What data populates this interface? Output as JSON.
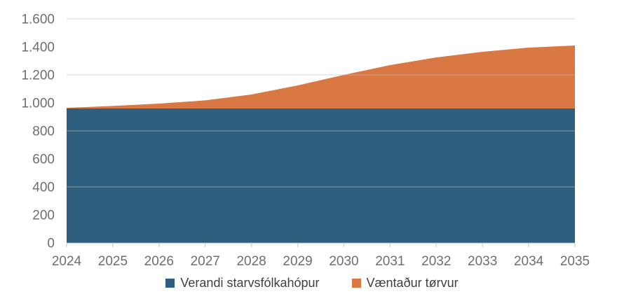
{
  "chart_data": {
    "type": "area",
    "stacked": true,
    "title": "",
    "xlabel": "",
    "ylabel": "",
    "categories": [
      "2024",
      "2025",
      "2026",
      "2027",
      "2028",
      "2029",
      "2030",
      "2031",
      "2032",
      "2033",
      "2034",
      "2035"
    ],
    "series": [
      {
        "name": "Verandi starvsfólkahópur",
        "color": "#2E5F7E",
        "values": [
          960,
          960,
          960,
          960,
          960,
          960,
          960,
          960,
          960,
          960,
          960,
          960
        ]
      },
      {
        "name": "Væntaður tørvur",
        "color": "#D97842",
        "values": [
          5,
          18,
          35,
          58,
          100,
          165,
          240,
          310,
          365,
          405,
          435,
          450
        ]
      }
    ],
    "stacked_totals": [
      965,
      978,
      995,
      1018,
      1060,
      1125,
      1200,
      1270,
      1325,
      1365,
      1395,
      1410
    ],
    "ylim": [
      0,
      1600
    ],
    "ytick_step": 200,
    "ytick_labels": [
      "0",
      "200",
      "400",
      "600",
      "800",
      "1.000",
      "1.200",
      "1.400",
      "1.600"
    ],
    "gridlines_at": [
      400,
      800,
      1200,
      1600
    ],
    "grid": true,
    "legend_position": "bottom",
    "axis_color": "#d6d6d6",
    "gridline_color": "#bfbfbf",
    "tick_label_color": "#6e6e6e"
  }
}
